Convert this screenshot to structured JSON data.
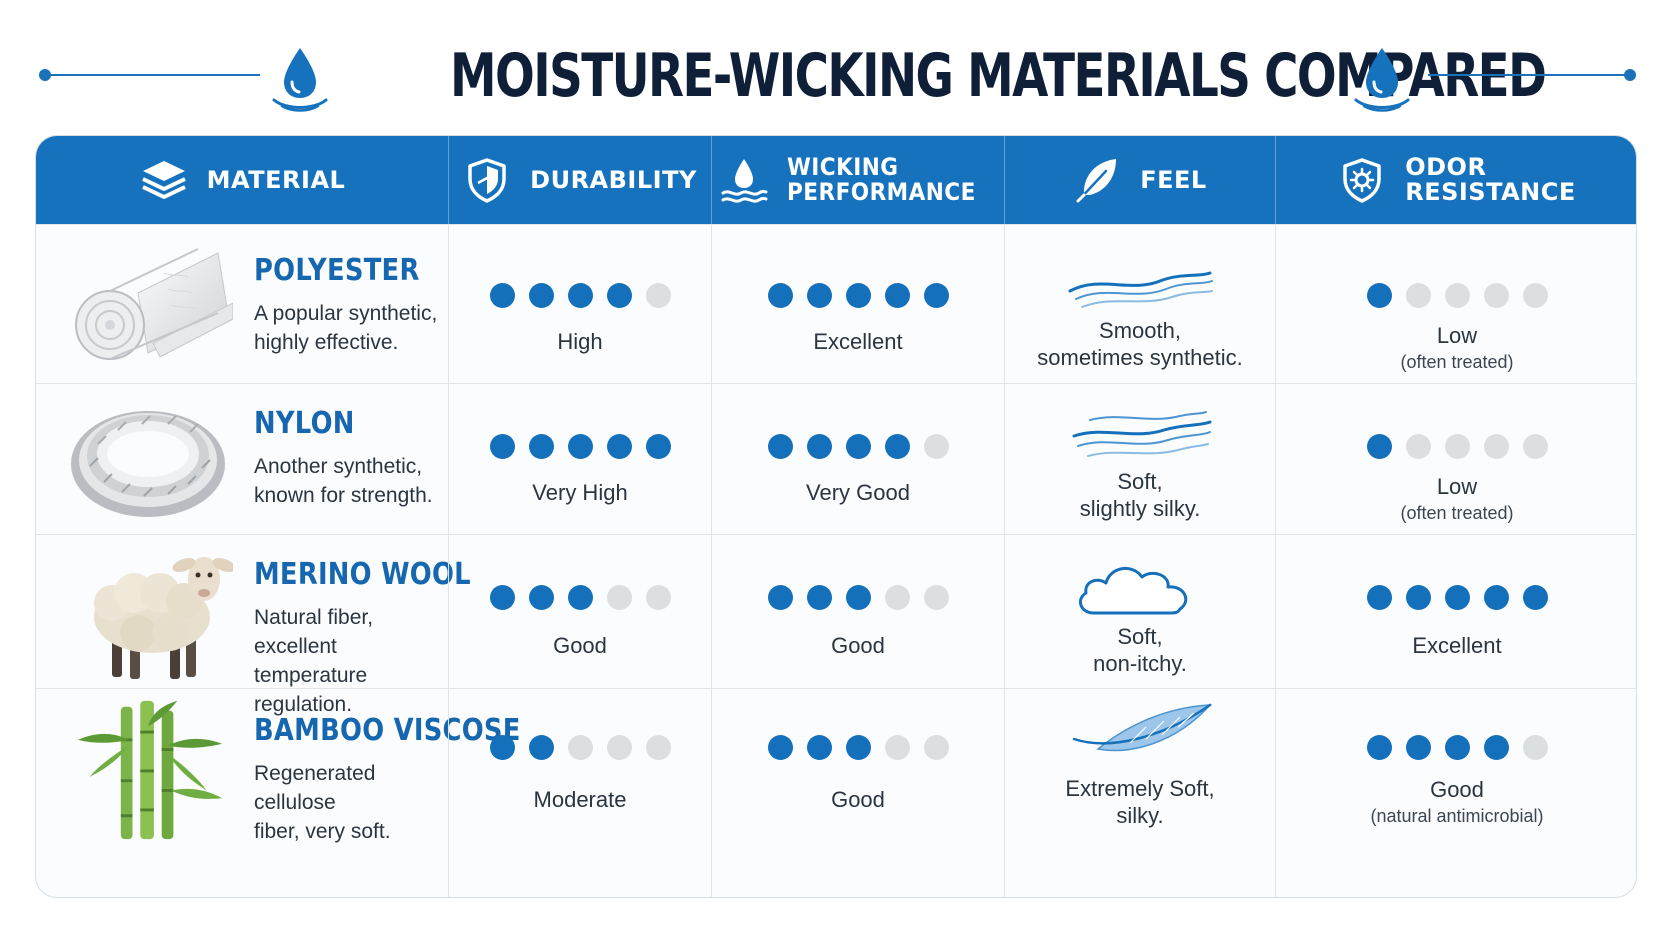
{
  "title": "MOISTURE-WICKING MATERIALS COMPARED",
  "columns": {
    "material": "MATERIAL",
    "durability": "DURABILITY",
    "wicking": "WICKING\nPERFORMANCE",
    "feel": "FEEL",
    "odor": "ODOR\nRESISTANCE"
  },
  "icons": {
    "title_left": "water-drop-icon",
    "title_right": "water-drop-icon",
    "material": "layers-icon",
    "durability": "shield-icon",
    "wicking": "water-drop-waves-icon",
    "feel": "feather-icon",
    "odor": "shield-gear-icon"
  },
  "colors": {
    "accent": "#1772bd",
    "dot_on": "#1570bb",
    "dot_off": "#dcdfe2",
    "name": "#1667b0"
  },
  "scale_max": 5,
  "rows": [
    {
      "name": "POLYESTER",
      "description": "A popular synthetic,\nhighly effective.",
      "image": "fabric-roll-image",
      "durability": {
        "score": 4,
        "label": "High"
      },
      "wicking": {
        "score": 5,
        "label": "Excellent"
      },
      "feel": {
        "icon": "smooth-waves-icon",
        "text": "Smooth,\nsometimes synthetic."
      },
      "odor": {
        "score": 1,
        "label": "Low",
        "note": "(often treated)"
      }
    },
    {
      "name": "NYLON",
      "description": "Another synthetic,\nknown for strength.",
      "image": "rope-coil-image",
      "durability": {
        "score": 5,
        "label": "Very High"
      },
      "wicking": {
        "score": 4,
        "label": "Very Good"
      },
      "feel": {
        "icon": "silky-waves-icon",
        "text": "Soft,\nslightly silky."
      },
      "odor": {
        "score": 1,
        "label": "Low",
        "note": "(often treated)"
      }
    },
    {
      "name": "MERINO WOOL",
      "description": "Natural fiber, excellent\ntemperature regulation.",
      "image": "sheep-image",
      "durability": {
        "score": 3,
        "label": "Good"
      },
      "wicking": {
        "score": 3,
        "label": "Good"
      },
      "feel": {
        "icon": "cloud-icon",
        "text": "Soft,\nnon-itchy."
      },
      "odor": {
        "score": 5,
        "label": "Excellent",
        "note": ""
      }
    },
    {
      "name": "BAMBOO VISCOSE",
      "description": "Regenerated cellulose\nfiber, very soft.",
      "image": "bamboo-image",
      "durability": {
        "score": 2,
        "label": "Moderate"
      },
      "wicking": {
        "score": 3,
        "label": "Good"
      },
      "feel": {
        "icon": "feather-icon",
        "text": "Extremely Soft,\nsilky."
      },
      "odor": {
        "score": 4,
        "label": "Good",
        "note": "(natural antimicrobial)"
      }
    }
  ]
}
